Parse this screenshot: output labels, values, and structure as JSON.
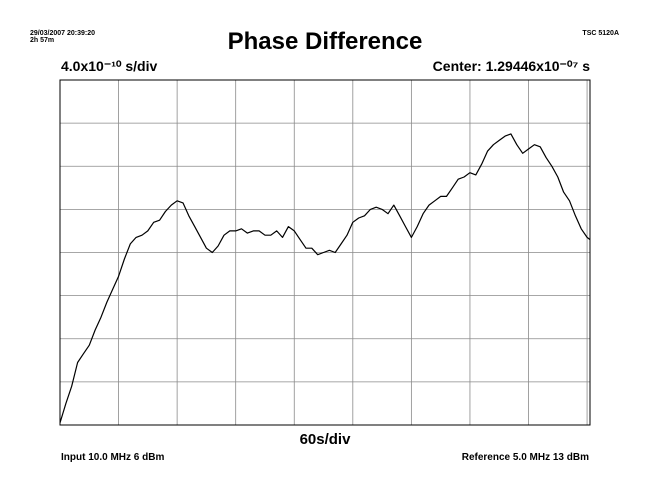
{
  "header": {
    "date": "29/03/2007 20:39:20",
    "elapsed": "2h 57m",
    "instrument": "TSC 5120A"
  },
  "footer": {
    "input": "Input 10.0 MHz 6 dBm",
    "reference": "Reference 5.0 MHz 13 dBm"
  },
  "chart_data": {
    "type": "line",
    "title": "Phase Difference",
    "ylabel": "4.0x10⁻¹⁰ s/div",
    "xlabel": "60s/div",
    "center": "Center: 1.29446x10⁻⁰⁷ s",
    "grid": true,
    "x_divisions": 9,
    "y_divisions": 8,
    "xlim": [
      0,
      9.05
    ],
    "ylim": [
      0,
      8
    ],
    "series": [
      {
        "x": [
          0,
          0.1,
          0.2,
          0.3,
          0.4,
          0.5,
          0.6,
          0.7,
          0.8,
          0.9,
          1.0,
          1.1,
          1.2,
          1.3,
          1.4,
          1.5,
          1.6,
          1.7,
          1.8,
          1.9,
          2.0,
          2.1,
          2.2,
          2.3,
          2.4,
          2.5,
          2.6,
          2.7,
          2.8,
          2.9,
          3.0,
          3.1,
          3.2,
          3.3,
          3.4,
          3.5,
          3.6,
          3.7,
          3.8,
          3.9,
          4.0,
          4.1,
          4.2,
          4.3,
          4.4,
          4.5,
          4.6,
          4.7,
          4.8,
          4.9,
          5.0,
          5.1,
          5.2,
          5.3,
          5.4,
          5.5,
          5.6,
          5.7,
          5.8,
          5.9,
          6.0,
          6.1,
          6.2,
          6.3,
          6.4,
          6.5,
          6.6,
          6.7,
          6.8,
          6.9,
          7.0,
          7.1,
          7.2,
          7.3,
          7.4,
          7.5,
          7.6,
          7.7,
          7.8,
          7.9,
          8.0,
          8.1,
          8.2,
          8.3,
          8.4,
          8.5,
          8.6,
          8.7,
          8.8,
          8.9,
          9.0,
          9.05
        ],
        "y": [
          0.05,
          0.5,
          0.9,
          1.45,
          1.65,
          1.85,
          2.2,
          2.5,
          2.85,
          3.15,
          3.45,
          3.85,
          4.2,
          4.35,
          4.4,
          4.5,
          4.7,
          4.75,
          4.95,
          5.1,
          5.2,
          5.15,
          4.85,
          4.6,
          4.35,
          4.1,
          4.0,
          4.15,
          4.4,
          4.5,
          4.5,
          4.55,
          4.45,
          4.5,
          4.5,
          4.4,
          4.4,
          4.5,
          4.35,
          4.6,
          4.5,
          4.3,
          4.1,
          4.1,
          3.95,
          4.0,
          4.05,
          4.0,
          4.2,
          4.4,
          4.7,
          4.8,
          4.85,
          5.0,
          5.05,
          5.0,
          4.9,
          5.1,
          4.85,
          4.6,
          4.35,
          4.6,
          4.9,
          5.1,
          5.2,
          5.3,
          5.3,
          5.5,
          5.7,
          5.75,
          5.85,
          5.8,
          6.05,
          6.35,
          6.5,
          6.6,
          6.7,
          6.75,
          6.5,
          6.3,
          6.4,
          6.5,
          6.45,
          6.2,
          6.0,
          5.75,
          5.4,
          5.2,
          4.85,
          4.55,
          4.35,
          4.3
        ]
      }
    ]
  }
}
